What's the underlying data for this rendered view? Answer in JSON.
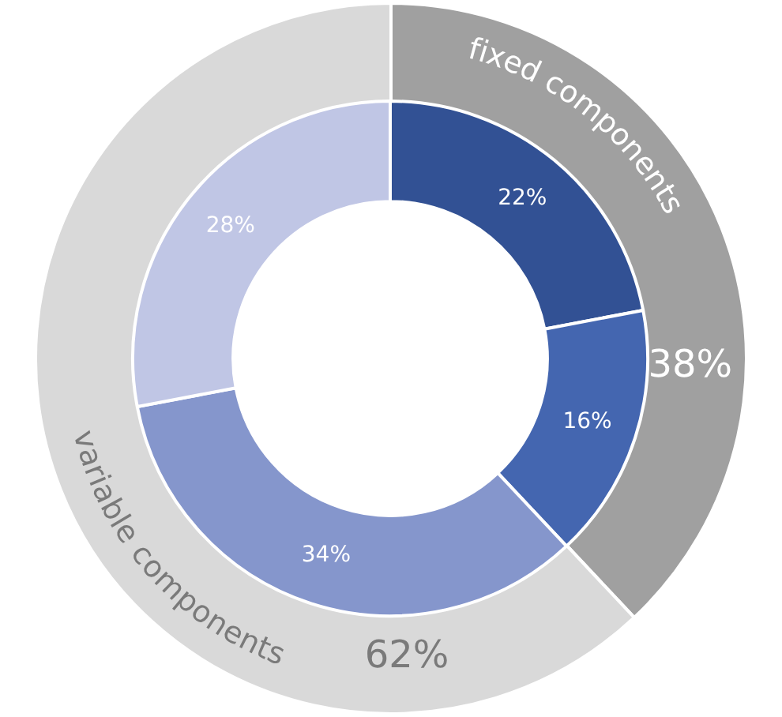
{
  "chart_data": [
    {
      "type": "donut",
      "legend": false,
      "categories": [
        "fixed components",
        "variable components"
      ],
      "values": [
        38,
        62
      ],
      "colors": [
        "#a0a0a0",
        "#d9d9d9"
      ],
      "value_labels": [
        "38%",
        "62%"
      ]
    },
    {
      "type": "donut",
      "legend": false,
      "categories": [
        null,
        null,
        null,
        null
      ],
      "values": [
        22,
        16,
        34,
        28
      ],
      "colors": [
        "#325194",
        "#4466b0",
        "#8596cc",
        "#c0c6e5"
      ],
      "value_labels": [
        "22%",
        "16%",
        "34%",
        "28%"
      ]
    }
  ]
}
